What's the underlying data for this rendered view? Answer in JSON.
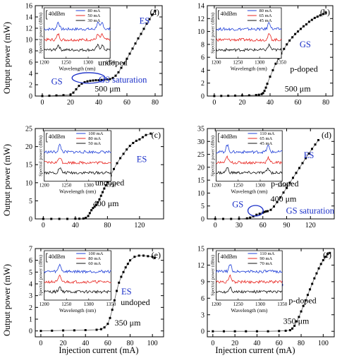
{
  "page": {
    "y_label": "Output power (mW)",
    "x_label": "Injection current (mA)",
    "inset_y_label": "Spectral power (dBm)",
    "inset_x_label": "Wavelength (nm)",
    "inset_scale": "40dBm"
  },
  "colors": {
    "blue": "#1f3fd8",
    "red": "#e8241f",
    "black": "#111111",
    "note": "#1a2fc8"
  },
  "chart_data": [
    {
      "type": "line",
      "panel": "a",
      "xlim": [
        -5,
        85
      ],
      "ylim": [
        0,
        16
      ],
      "xticks": [
        0,
        20,
        40,
        60,
        80
      ],
      "yticks": [
        0,
        2,
        4,
        6,
        8,
        10,
        12,
        14,
        16
      ],
      "series": [
        {
          "values": [
            [
              0,
              0
            ],
            [
              5,
              0.05
            ],
            [
              10,
              0.1
            ],
            [
              15,
              0.15
            ],
            [
              20,
              0.25
            ],
            [
              22,
              0.6
            ],
            [
              24,
              1.2
            ],
            [
              26,
              1.8
            ],
            [
              28,
              2.2
            ],
            [
              30,
              2.45
            ],
            [
              32,
              2.6
            ],
            [
              34,
              2.7
            ],
            [
              36,
              2.75
            ],
            [
              38,
              2.8
            ],
            [
              40,
              2.8
            ],
            [
              42,
              2.85
            ],
            [
              44,
              2.9
            ],
            [
              46,
              2.95
            ],
            [
              48,
              3.0
            ],
            [
              50,
              3.2
            ],
            [
              52,
              3.6
            ],
            [
              54,
              4.2
            ],
            [
              56,
              5.0
            ],
            [
              58,
              5.8
            ],
            [
              60,
              6.6
            ],
            [
              62,
              7.5
            ],
            [
              64,
              8.4
            ],
            [
              66,
              9.3
            ],
            [
              68,
              10.2
            ],
            [
              70,
              11.0
            ],
            [
              72,
              11.9
            ],
            [
              74,
              12.8
            ],
            [
              76,
              13.6
            ],
            [
              78,
              14.4
            ],
            [
              80,
              15.1
            ]
          ]
        }
      ],
      "annotations": {
        "es": "ES",
        "gs": "GS",
        "gs_sat": "GS saturation",
        "doping": "undoped",
        "length": "500 μm",
        "panel_label": "(a)"
      },
      "inset": {
        "currents": [
          "80 mA",
          "50 mA",
          "30 mA"
        ],
        "xlim": [
          1200,
          1350
        ],
        "xticks": [
          1200,
          1250,
          1300,
          1350
        ],
        "peaks_nm": [
          1232,
          1322,
          1332
        ]
      }
    },
    {
      "type": "line",
      "panel": "b",
      "xlim": [
        -5,
        85
      ],
      "ylim": [
        0,
        14
      ],
      "xticks": [
        0,
        20,
        40,
        60,
        80
      ],
      "yticks": [
        0,
        2,
        4,
        6,
        8,
        10,
        12,
        14
      ],
      "series": [
        {
          "values": [
            [
              0,
              0
            ],
            [
              5,
              0.02
            ],
            [
              10,
              0.04
            ],
            [
              15,
              0.06
            ],
            [
              20,
              0.08
            ],
            [
              25,
              0.1
            ],
            [
              30,
              0.15
            ],
            [
              32,
              0.2
            ],
            [
              34,
              0.3
            ],
            [
              35,
              0.45
            ],
            [
              36,
              0.8
            ],
            [
              37,
              1.3
            ],
            [
              38,
              1.9
            ],
            [
              40,
              3.0
            ],
            [
              42,
              4.0
            ],
            [
              44,
              5.0
            ],
            [
              46,
              5.8
            ],
            [
              48,
              6.6
            ],
            [
              50,
              7.3
            ],
            [
              52,
              8.0
            ],
            [
              54,
              8.6
            ],
            [
              56,
              9.1
            ],
            [
              58,
              9.6
            ],
            [
              60,
              10.0
            ],
            [
              62,
              10.4
            ],
            [
              64,
              10.8
            ],
            [
              66,
              11.1
            ],
            [
              68,
              11.5
            ],
            [
              70,
              11.8
            ],
            [
              72,
              12.1
            ],
            [
              74,
              12.3
            ],
            [
              76,
              12.5
            ],
            [
              78,
              12.7
            ],
            [
              80,
              12.9
            ]
          ]
        }
      ],
      "annotations": {
        "gs": "GS",
        "doping": "p-doped",
        "length": "500 μm",
        "panel_label": "(b)"
      },
      "inset": {
        "currents": [
          "80 mA",
          "65 mA",
          "45 mA"
        ],
        "xlim": [
          1200,
          1350
        ],
        "xticks": [
          1200,
          1250,
          1300,
          1350
        ],
        "peaks_nm": [
          1322
        ]
      }
    },
    {
      "type": "line",
      "panel": "c",
      "xlim": [
        -10,
        150
      ],
      "ylim": [
        0,
        25
      ],
      "xticks": [
        0,
        40,
        80,
        120
      ],
      "yticks": [
        0,
        5,
        10,
        15,
        20,
        25
      ],
      "series": [
        {
          "values": [
            [
              0,
              0
            ],
            [
              10,
              0
            ],
            [
              20,
              0
            ],
            [
              30,
              0
            ],
            [
              40,
              0.05
            ],
            [
              45,
              0.05
            ],
            [
              50,
              0.1
            ],
            [
              53,
              0.3
            ],
            [
              56,
              0.8
            ],
            [
              58,
              1.6
            ],
            [
              60,
              2.4
            ],
            [
              62,
              3.0
            ],
            [
              64,
              3.4
            ],
            [
              66,
              3.8
            ],
            [
              68,
              4.6
            ],
            [
              70,
              5.4
            ],
            [
              72,
              6.4
            ],
            [
              74,
              7.4
            ],
            [
              76,
              8.4
            ],
            [
              78,
              9.3
            ],
            [
              80,
              10.2
            ],
            [
              84,
              12.0
            ],
            [
              88,
              13.8
            ],
            [
              92,
              15.4
            ],
            [
              96,
              16.8
            ],
            [
              100,
              18.0
            ],
            [
              104,
              19.2
            ],
            [
              108,
              20.2
            ],
            [
              112,
              21.0
            ],
            [
              116,
              21.6
            ],
            [
              120,
              22.0
            ],
            [
              124,
              22.6
            ],
            [
              128,
              23.2
            ],
            [
              134,
              23.6
            ]
          ]
        }
      ],
      "annotations": {
        "es": "ES",
        "doping": "undoped",
        "length": "400 μm",
        "panel_label": "(c)"
      },
      "inset": {
        "currents": [
          "100 mA",
          "80 mA",
          "50 mA"
        ],
        "xlim": [
          1200,
          1350
        ],
        "xticks": [
          1200,
          1250,
          1300,
          1350
        ],
        "peaks_nm": [
          1235
        ]
      }
    },
    {
      "type": "line",
      "panel": "d",
      "xlim": [
        -10,
        150
      ],
      "ylim": [
        0,
        35
      ],
      "xticks": [
        0,
        30,
        60,
        90,
        120
      ],
      "yticks": [
        0,
        5,
        10,
        15,
        20,
        25,
        30,
        35
      ],
      "series": [
        {
          "values": [
            [
              0,
              0
            ],
            [
              10,
              0
            ],
            [
              20,
              0
            ],
            [
              30,
              0.05
            ],
            [
              40,
              0.2
            ],
            [
              44,
              0.5
            ],
            [
              48,
              1.0
            ],
            [
              52,
              1.6
            ],
            [
              56,
              2.0
            ],
            [
              60,
              2.4
            ],
            [
              62,
              2.7
            ],
            [
              64,
              2.9
            ],
            [
              66,
              3.0
            ],
            [
              70,
              3.5
            ],
            [
              74,
              4.8
            ],
            [
              78,
              6.5
            ],
            [
              82,
              8.3
            ],
            [
              86,
              10.2
            ],
            [
              90,
              12.0
            ],
            [
              94,
              14.0
            ],
            [
              98,
              15.9
            ],
            [
              102,
              17.8
            ],
            [
              106,
              19.7
            ],
            [
              110,
              21.6
            ],
            [
              114,
              23.5
            ],
            [
              118,
              25.3
            ],
            [
              122,
              27.1
            ],
            [
              126,
              28.8
            ],
            [
              130,
              30.5
            ]
          ]
        }
      ],
      "annotations": {
        "es": "ES",
        "gs": "GS",
        "gs_sat": "GS saturation",
        "doping": "p-doped",
        "length": "400 μm",
        "panel_label": "(d)"
      },
      "inset": {
        "currents": [
          "110 mA",
          "65 mA",
          "45 mA"
        ],
        "xlim": [
          1200,
          1350
        ],
        "xticks": [
          1200,
          1250,
          1300,
          1350
        ],
        "peaks_nm": [
          1225,
          1318
        ]
      }
    },
    {
      "type": "line",
      "panel": "e",
      "xlim": [
        -5,
        110
      ],
      "ylim": [
        -0.5,
        7
      ],
      "xticks": [
        0,
        20,
        40,
        60,
        80,
        100
      ],
      "yticks": [
        0,
        1,
        2,
        3,
        4,
        5,
        6,
        7
      ],
      "series": [
        {
          "values": [
            [
              0,
              0
            ],
            [
              10,
              0.02
            ],
            [
              20,
              0.04
            ],
            [
              30,
              0.05
            ],
            [
              40,
              0.07
            ],
            [
              50,
              0.1
            ],
            [
              54,
              0.15
            ],
            [
              57,
              0.3
            ],
            [
              60,
              0.6
            ],
            [
              62,
              1.1
            ],
            [
              64,
              1.8
            ],
            [
              66,
              2.6
            ],
            [
              68,
              3.4
            ],
            [
              70,
              4.1
            ],
            [
              72,
              4.6
            ],
            [
              74,
              5.0
            ],
            [
              76,
              5.4
            ],
            [
              78,
              5.7
            ],
            [
              80,
              6.0
            ],
            [
              84,
              6.3
            ],
            [
              88,
              6.4
            ],
            [
              92,
              6.4
            ],
            [
              96,
              6.35
            ],
            [
              100,
              6.3
            ],
            [
              102,
              6.2
            ]
          ]
        }
      ],
      "annotations": {
        "es": "ES",
        "doping": "undoped",
        "length": "350 μm",
        "panel_label": "(e)"
      },
      "inset": {
        "currents": [
          "100 mA",
          "80 mA",
          "60 mA"
        ],
        "xlim": [
          1200,
          1350
        ],
        "xticks": [
          1200,
          1250,
          1300,
          1350
        ],
        "peaks_nm": [
          1235
        ]
      }
    },
    {
      "type": "line",
      "panel": "f",
      "xlim": [
        -5,
        110
      ],
      "ylim": [
        -1,
        15
      ],
      "xticks": [
        0,
        20,
        40,
        60,
        80,
        100
      ],
      "yticks": [
        0,
        3,
        6,
        9,
        12,
        15
      ],
      "series": [
        {
          "values": [
            [
              0,
              0
            ],
            [
              10,
              0
            ],
            [
              20,
              0
            ],
            [
              30,
              0
            ],
            [
              40,
              0
            ],
            [
              50,
              0
            ],
            [
              60,
              0.05
            ],
            [
              66,
              0.1
            ],
            [
              70,
              0.2
            ],
            [
              72,
              0.5
            ],
            [
              74,
              1.0
            ],
            [
              76,
              1.8
            ],
            [
              78,
              2.6
            ],
            [
              80,
              3.6
            ],
            [
              82,
              4.6
            ],
            [
              84,
              5.6
            ],
            [
              86,
              6.6
            ],
            [
              88,
              7.6
            ],
            [
              90,
              8.6
            ],
            [
              92,
              9.6
            ],
            [
              94,
              10.5
            ],
            [
              96,
              11.4
            ],
            [
              98,
              12.2
            ],
            [
              100,
              12.9
            ],
            [
              102,
              13.5
            ],
            [
              104,
              14.0
            ],
            [
              106,
              14.2
            ]
          ]
        }
      ],
      "annotations": {
        "es": "ES",
        "doping": "p-doped",
        "length": "350 μm",
        "panel_label": "(f)"
      },
      "inset": {
        "currents": [
          "110 mA",
          "90 mA",
          "70 mA"
        ],
        "xlim": [
          1200,
          1350
        ],
        "xticks": [
          1200,
          1250,
          1300,
          1350
        ],
        "peaks_nm": [
          1232
        ]
      }
    }
  ]
}
